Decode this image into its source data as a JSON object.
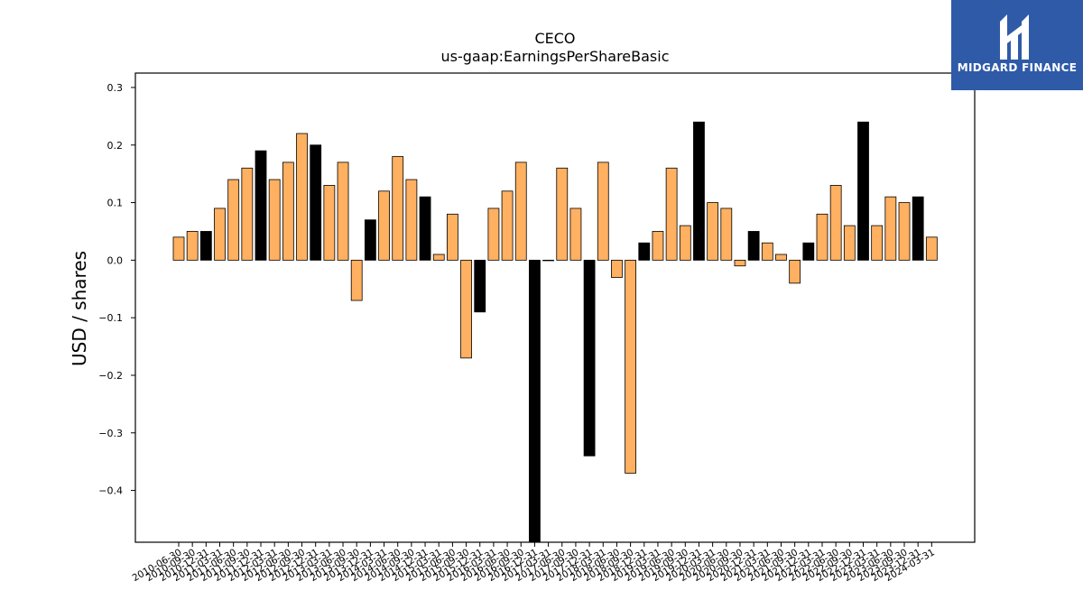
{
  "chart_data": {
    "type": "bar",
    "title": "CECO",
    "subtitle": "us-gaap:EarningsPerShareBasic",
    "xlabel": "",
    "ylabel": "USD / shares",
    "ylim": [
      -0.49,
      0.325
    ],
    "yticks": [
      0.3,
      0.2,
      0.1,
      0.0,
      -0.1,
      -0.2,
      -0.3,
      -0.4
    ],
    "ytick_labels": [
      "0.3",
      "0.2",
      "0.1",
      "0.0",
      "−0.1",
      "−0.2",
      "−0.3",
      "−0.4"
    ],
    "grid": false,
    "colors": {
      "quarter": "#ffb060",
      "annual": "#000000"
    },
    "categories": [
      "2010-06-30",
      "2010-09-30",
      "2010-12-31",
      "2011-03-31",
      "2011-06-30",
      "2011-09-30",
      "2011-12-31",
      "2012-03-31",
      "2012-06-30",
      "2012-09-30",
      "2012-12-31",
      "2013-03-31",
      "2013-06-30",
      "2013-09-30",
      "2013-12-31",
      "2014-03-31",
      "2014-06-30",
      "2014-09-30",
      "2014-12-31",
      "2015-03-31",
      "2015-06-30",
      "2015-09-30",
      "2015-12-31",
      "2016-03-31",
      "2016-06-30",
      "2016-09-30",
      "2016-12-31",
      "2017-03-31",
      "2017-06-30",
      "2017-09-30",
      "2017-12-31",
      "2018-03-31",
      "2018-06-30",
      "2018-09-30",
      "2018-12-31",
      "2019-03-31",
      "2019-06-30",
      "2019-09-30",
      "2019-12-31",
      "2020-03-31",
      "2020-06-30",
      "2020-09-30",
      "2020-12-31",
      "2021-03-31",
      "2021-06-30",
      "2021-09-30",
      "2021-12-31",
      "2022-03-31",
      "2022-06-30",
      "2022-09-30",
      "2022-12-31",
      "2023-03-31",
      "2023-06-30",
      "2023-09-30",
      "2023-12-31",
      "2024-03-31"
    ],
    "values": [
      0.04,
      0.05,
      0.05,
      0.09,
      0.14,
      0.16,
      0.19,
      0.14,
      0.17,
      0.22,
      0.2,
      0.13,
      0.17,
      -0.07,
      0.07,
      0.12,
      0.18,
      0.14,
      0.11,
      0.01,
      0.08,
      -0.17,
      -0.09,
      0.09,
      0.12,
      0.17,
      -0.49,
      0.0,
      0.16,
      0.09,
      -0.34,
      0.17,
      -0.03,
      -0.37,
      0.03,
      0.05,
      0.16,
      0.06,
      0.24,
      0.1,
      0.09,
      -0.01,
      0.05,
      0.03,
      0.01,
      -0.04,
      0.03,
      0.08,
      0.13,
      0.06,
      0.24,
      0.06,
      0.11,
      0.1,
      0.11,
      0.04
    ],
    "annual": [
      false,
      false,
      true,
      false,
      false,
      false,
      true,
      false,
      false,
      false,
      true,
      false,
      false,
      false,
      true,
      false,
      false,
      false,
      true,
      false,
      false,
      false,
      true,
      false,
      false,
      false,
      true,
      false,
      false,
      false,
      true,
      false,
      false,
      false,
      true,
      false,
      false,
      false,
      true,
      false,
      false,
      false,
      true,
      false,
      false,
      false,
      true,
      false,
      false,
      false,
      true,
      false,
      false,
      false,
      true,
      false
    ]
  },
  "logo": {
    "text": "MIDGARD FINANCE"
  }
}
